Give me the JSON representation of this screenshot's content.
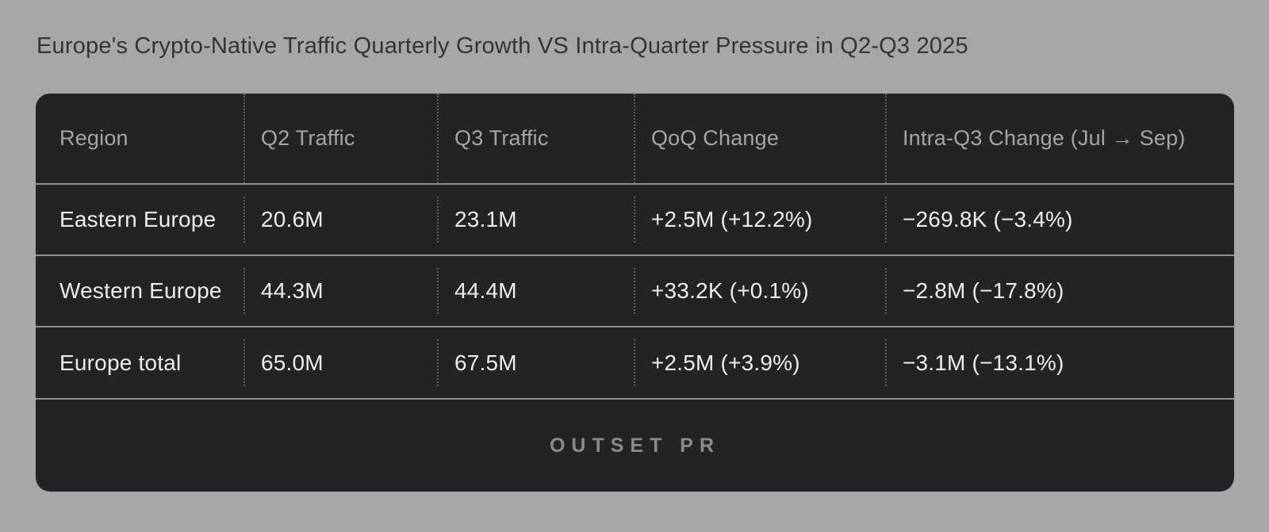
{
  "page": {
    "title": "Europe's Crypto-Native Traffic Quarterly Growth VS Intra-Quarter Pressure in Q2-Q3 2025",
    "background_color": "#a7a7a7",
    "card_color": "#232325",
    "separator_color": "#8f9092",
    "header_text_color": "#a3a4a6",
    "cell_text_color": "#ececec"
  },
  "table": {
    "headers": [
      "Region",
      "Q2 Traffic",
      "Q3 Traffic",
      "QoQ Change",
      "Intra-Q3 Change (Jul → Sep)"
    ],
    "rows": [
      {
        "region": "Eastern Europe",
        "q2": "20.6M",
        "q3": "23.1M",
        "qoq": "+2.5M (+12.2%)",
        "intra": "−269.8K (−3.4%)"
      },
      {
        "region": "Western Europe",
        "q2": "44.3M",
        "q3": "44.4M",
        "qoq": "+33.2K (+0.1%)",
        "intra": "−2.8M (−17.8%)"
      },
      {
        "region": "Europe total",
        "q2": "65.0M",
        "q3": "67.5M",
        "qoq": "+2.5M (+3.9%)",
        "intra": "−3.1M (−13.1%)"
      }
    ],
    "footer_logo": "OUTSET PR"
  },
  "chart_data": {
    "type": "table",
    "title": "Europe's Crypto-Native Traffic Quarterly Growth VS Intra-Quarter Pressure in Q2-Q3 2025",
    "columns": [
      "Region",
      "Q2 Traffic",
      "Q3 Traffic",
      "QoQ Change",
      "Intra-Q3 Change (Jul → Sep)"
    ],
    "rows": [
      [
        "Eastern Europe",
        "20.6M",
        "23.1M",
        "+2.5M (+12.2%)",
        "−269.8K (−3.4%)"
      ],
      [
        "Western Europe",
        "44.3M",
        "44.4M",
        "+33.2K (+0.1%)",
        "−2.8M (−17.8%)"
      ],
      [
        "Europe total",
        "65.0M",
        "67.5M",
        "+2.5M (+3.9%)",
        "−3.1M (−13.1%)"
      ]
    ],
    "numeric": {
      "q2_traffic_millions": [
        20.6,
        44.3,
        65.0
      ],
      "q3_traffic_millions": [
        23.1,
        44.4,
        67.5
      ],
      "qoq_change_percent": [
        12.2,
        0.1,
        3.9
      ],
      "intra_q3_change_percent": [
        -3.4,
        -17.8,
        -13.1
      ]
    },
    "branding": "OUTSET PR",
    "layout": {
      "grid": "dotted column separators, solid row separators",
      "legend_position": "none"
    }
  }
}
